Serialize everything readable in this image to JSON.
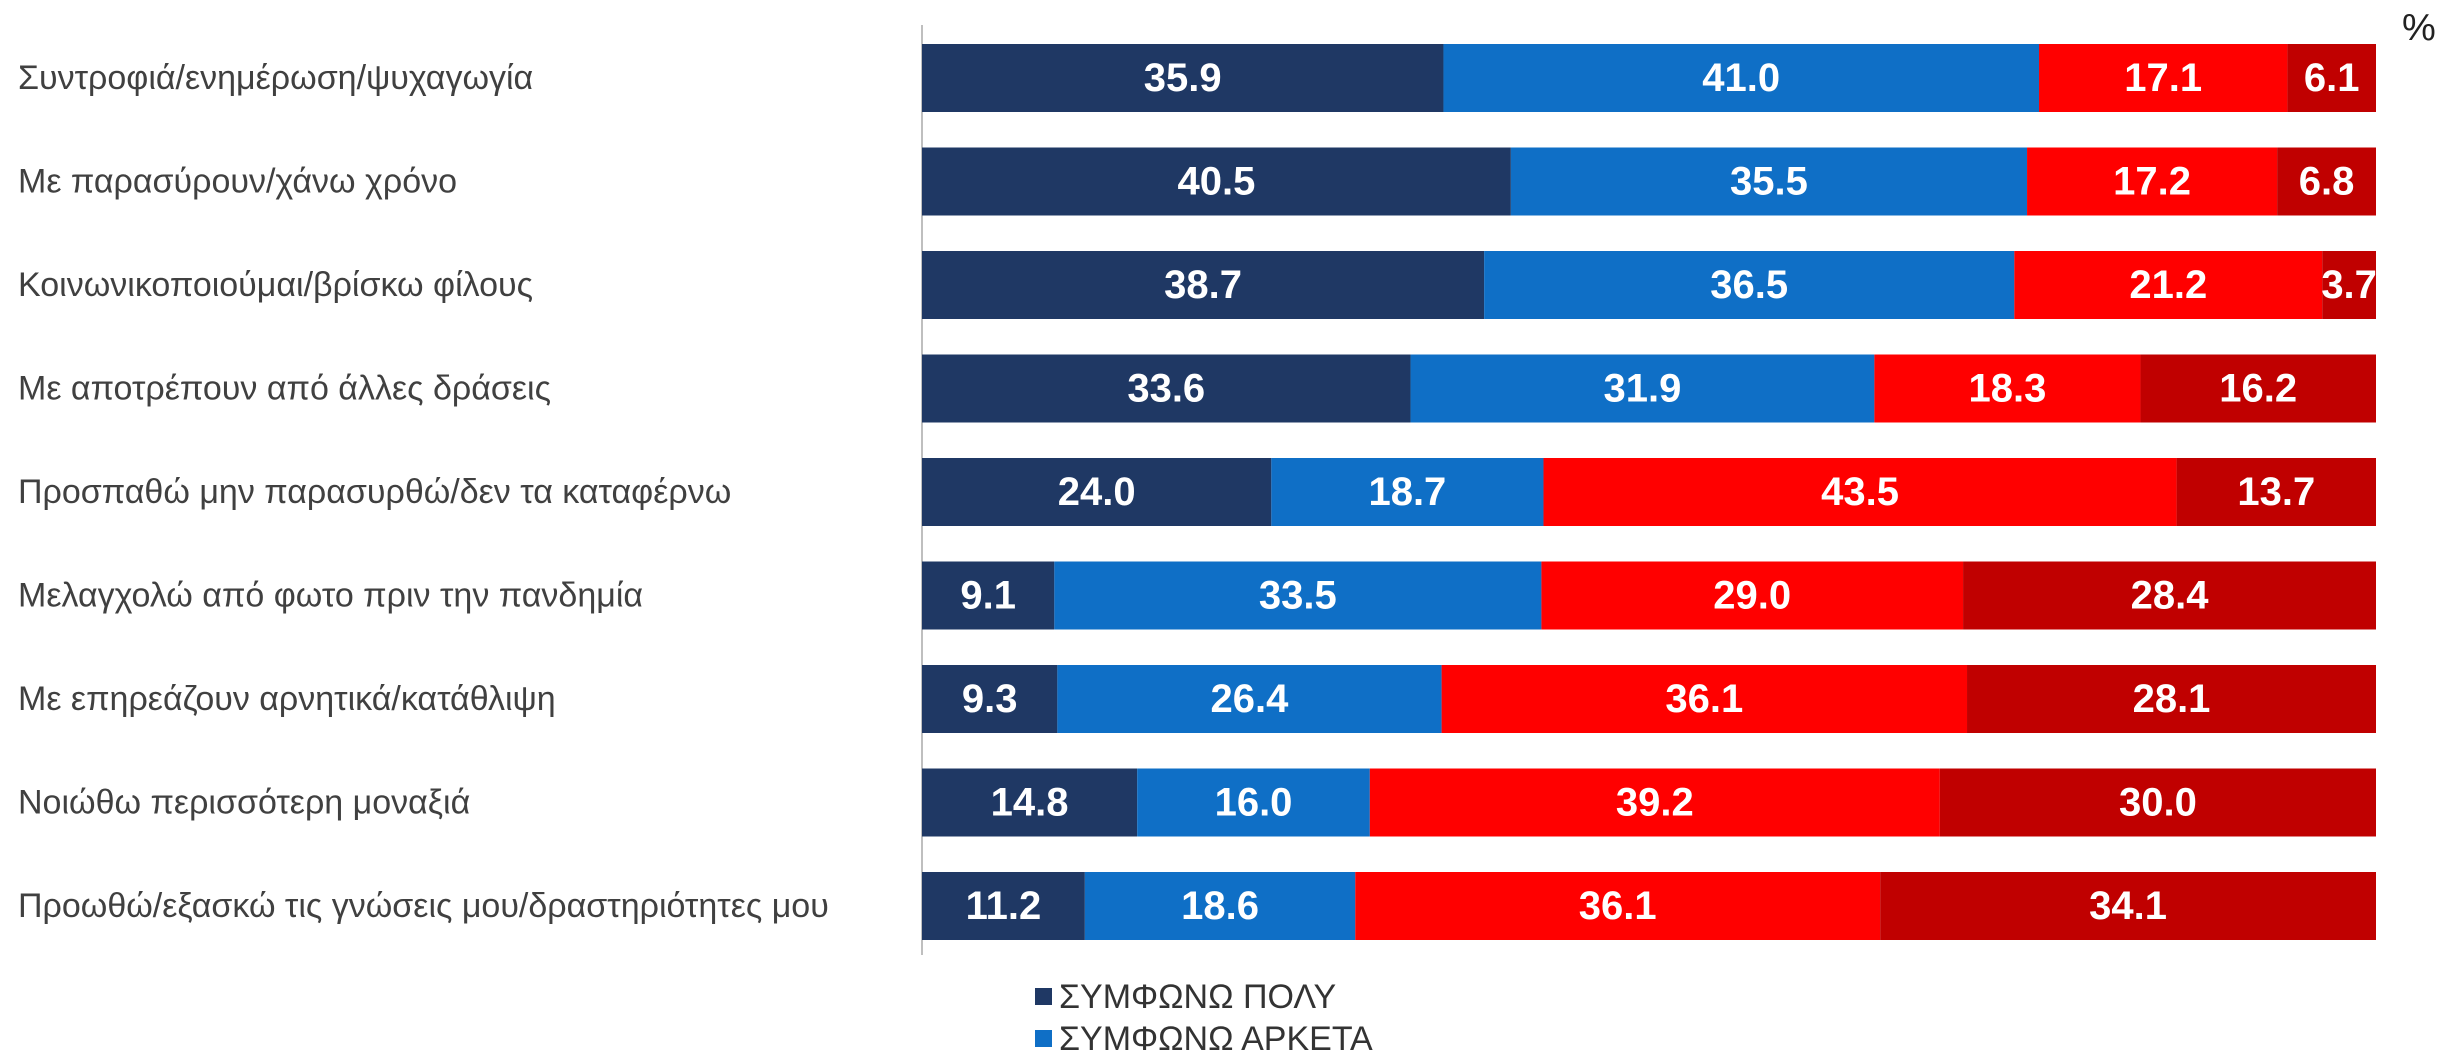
{
  "chart_data": {
    "type": "bar",
    "orientation": "horizontal",
    "stacked": true,
    "unit": "%",
    "categories": [
      "Συντροφιά/ενημέρωση/ψυχαγωγία",
      "Με παρασύρουν/χάνω χρόνο",
      "Κοινωνικοποιούμαι/βρίσκω φίλους",
      "Με αποτρέπουν από άλλες δράσεις",
      "Προσπαθώ μην παρασυρθώ/δεν τα καταφέρνω",
      "Μελαγχολώ από φωτο πριν την πανδημία",
      "Με επηρεάζουν αρνητικά/κατάθλιψη",
      "Νοιώθω περισσότερη μοναξιά",
      "Προωθώ/εξασκώ τις γνώσεις μου/δραστηριότητες μου"
    ],
    "series": [
      {
        "name": "ΣΥΜΦΩΝΩ ΠΟΛΥ",
        "color": "#1f3864",
        "values": [
          35.9,
          40.5,
          38.7,
          33.6,
          24.0,
          9.1,
          9.3,
          14.8,
          11.2
        ]
      },
      {
        "name": "ΣΥΜΦΩΝΩ ΑΡΚΕΤΑ",
        "color": "#0f6fc6",
        "values": [
          41.0,
          35.5,
          36.5,
          31.9,
          18.7,
          33.5,
          26.4,
          16.0,
          18.6
        ]
      },
      {
        "color": "#ff0000",
        "values": [
          17.1,
          17.2,
          21.2,
          18.3,
          43.5,
          29.0,
          36.1,
          39.2,
          36.1
        ]
      },
      {
        "color": "#c00000",
        "values": [
          6.1,
          6.8,
          3.7,
          16.2,
          13.7,
          28.4,
          28.1,
          30.0,
          34.1
        ]
      }
    ],
    "xlim": [
      0,
      100
    ],
    "grid": false,
    "legend_position": "bottom",
    "legend_visible_entries": [
      "ΣΥΜΦΩΝΩ ΠΟΛΥ",
      "ΣΥΜΦΩΝΩ ΑΡΚΕΤΑ"
    ]
  }
}
